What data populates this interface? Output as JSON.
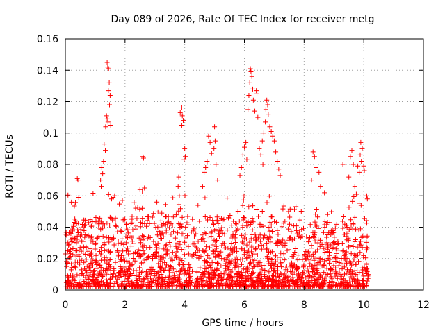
{
  "chart_data": {
    "type": "scatter",
    "title": "Day 089 of 2026, Rate Of TEC Index for receiver metg",
    "xlabel": "GPS time / hours",
    "ylabel": "ROTI / TECUs",
    "xlim": [
      0,
      12
    ],
    "ylim": [
      0,
      0.16
    ],
    "x_ticks": [
      0,
      2,
      4,
      6,
      8,
      10,
      12
    ],
    "x_tick_labels": [
      "0",
      "2",
      "4",
      "6",
      "8",
      "10",
      "12"
    ],
    "y_ticks": [
      0,
      0.02,
      0.04,
      0.06,
      0.08,
      0.1,
      0.12,
      0.14,
      0.16
    ],
    "y_tick_labels": [
      "0",
      "0.02",
      "0.04",
      "0.06",
      "0.08",
      "0.1",
      "0.12",
      "0.14",
      "0.16"
    ],
    "grid": true,
    "marker": "+",
    "color": "#ff0000",
    "x_data_range": [
      0,
      10.15
    ],
    "series": [
      {
        "name": "ROTI",
        "points": [
          [
            1.4,
            0.145
          ],
          [
            1.42,
            0.142
          ],
          [
            1.45,
            0.141
          ],
          [
            1.47,
            0.132
          ],
          [
            1.44,
            0.127
          ],
          [
            1.5,
            0.124
          ],
          [
            1.48,
            0.118
          ],
          [
            1.38,
            0.111
          ],
          [
            1.4,
            0.109
          ],
          [
            1.43,
            0.107
          ],
          [
            1.35,
            0.104
          ],
          [
            1.52,
            0.105
          ],
          [
            1.3,
            0.093
          ],
          [
            1.34,
            0.089
          ],
          [
            1.28,
            0.082
          ],
          [
            1.22,
            0.078
          ],
          [
            1.25,
            0.074
          ],
          [
            1.6,
            0.059
          ],
          [
            1.55,
            0.058
          ],
          [
            1.65,
            0.06
          ],
          [
            1.18,
            0.07
          ],
          [
            1.2,
            0.066
          ],
          [
            3.9,
            0.116
          ],
          [
            3.88,
            0.112
          ],
          [
            3.92,
            0.111
          ],
          [
            3.95,
            0.108
          ],
          [
            3.9,
            0.105
          ],
          [
            3.85,
            0.113
          ],
          [
            4.0,
            0.09
          ],
          [
            4.02,
            0.085
          ],
          [
            3.98,
            0.083
          ],
          [
            3.8,
            0.072
          ],
          [
            3.78,
            0.066
          ],
          [
            3.82,
            0.06
          ],
          [
            2.6,
            0.085
          ],
          [
            2.62,
            0.084
          ],
          [
            2.65,
            0.065
          ],
          [
            2.58,
            0.063
          ],
          [
            2.5,
            0.064
          ],
          [
            0.4,
            0.071
          ],
          [
            0.42,
            0.07
          ],
          [
            0.45,
            0.059
          ],
          [
            4.8,
            0.098
          ],
          [
            4.85,
            0.094
          ],
          [
            4.9,
            0.087
          ],
          [
            5.0,
            0.104
          ],
          [
            5.02,
            0.095
          ],
          [
            4.98,
            0.09
          ],
          [
            4.75,
            0.082
          ],
          [
            4.7,
            0.078
          ],
          [
            5.05,
            0.08
          ],
          [
            4.65,
            0.075
          ],
          [
            5.1,
            0.07
          ],
          [
            4.6,
            0.066
          ],
          [
            6.2,
            0.141
          ],
          [
            6.22,
            0.139
          ],
          [
            6.25,
            0.136
          ],
          [
            6.18,
            0.132
          ],
          [
            6.28,
            0.128
          ],
          [
            6.15,
            0.124
          ],
          [
            6.3,
            0.121
          ],
          [
            6.4,
            0.127
          ],
          [
            6.42,
            0.125
          ],
          [
            6.12,
            0.115
          ],
          [
            6.35,
            0.114
          ],
          [
            6.45,
            0.11
          ],
          [
            6.75,
            0.121
          ],
          [
            6.78,
            0.118
          ],
          [
            6.72,
            0.115
          ],
          [
            6.8,
            0.112
          ],
          [
            6.7,
            0.107
          ],
          [
            6.85,
            0.104
          ],
          [
            6.9,
            0.101
          ],
          [
            6.95,
            0.098
          ],
          [
            7.0,
            0.095
          ],
          [
            6.65,
            0.1
          ],
          [
            6.6,
            0.095
          ],
          [
            6.05,
            0.094
          ],
          [
            6.0,
            0.091
          ],
          [
            5.95,
            0.086
          ],
          [
            6.08,
            0.083
          ],
          [
            6.5,
            0.09
          ],
          [
            6.55,
            0.086
          ],
          [
            6.62,
            0.08
          ],
          [
            5.9,
            0.078
          ],
          [
            5.85,
            0.073
          ],
          [
            7.05,
            0.088
          ],
          [
            7.1,
            0.082
          ],
          [
            7.15,
            0.077
          ],
          [
            7.2,
            0.073
          ],
          [
            8.3,
            0.088
          ],
          [
            8.35,
            0.085
          ],
          [
            8.4,
            0.078
          ],
          [
            8.5,
            0.075
          ],
          [
            8.25,
            0.07
          ],
          [
            8.55,
            0.066
          ],
          [
            9.9,
            0.094
          ],
          [
            9.95,
            0.09
          ],
          [
            9.88,
            0.086
          ],
          [
            9.92,
            0.082
          ],
          [
            9.8,
            0.079
          ],
          [
            9.85,
            0.075
          ],
          [
            9.6,
            0.089
          ],
          [
            9.55,
            0.085
          ],
          [
            9.65,
            0.08
          ],
          [
            10.0,
            0.079
          ],
          [
            10.02,
            0.076
          ],
          [
            9.5,
            0.072
          ],
          [
            9.3,
            0.08
          ],
          [
            10.1,
            0.06
          ],
          [
            10.12,
            0.058
          ],
          [
            9.7,
            0.066
          ],
          [
            9.75,
            0.061
          ]
        ]
      }
    ]
  }
}
